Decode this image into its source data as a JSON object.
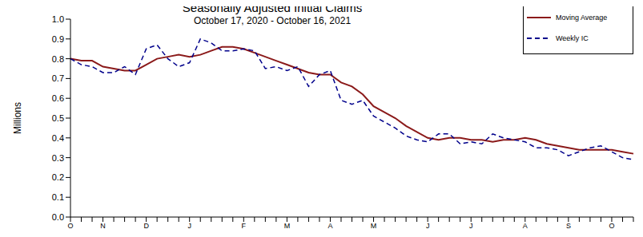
{
  "chart_data": {
    "type": "line",
    "title": "Seasonally Adjusted Initial Claims",
    "subtitle": "October 17, 2020 - October 16, 2021",
    "y_label": "Millions",
    "categories": [
      "O",
      null,
      null,
      "N",
      null,
      null,
      null,
      "D",
      null,
      null,
      null,
      "J",
      null,
      null,
      null,
      null,
      "F",
      null,
      null,
      null,
      "M",
      null,
      null,
      null,
      "A",
      null,
      null,
      null,
      "M",
      null,
      null,
      null,
      null,
      "J",
      null,
      null,
      null,
      "J",
      null,
      null,
      null,
      null,
      "A",
      null,
      null,
      null,
      "S",
      null,
      null,
      null,
      "O",
      null,
      null
    ],
    "series": [
      {
        "name": "Moving Average",
        "color": "#8b1a1a",
        "line_style": "solid",
        "values": [
          0.8,
          0.79,
          0.79,
          0.76,
          0.75,
          0.74,
          0.74,
          0.77,
          0.8,
          0.81,
          0.82,
          0.81,
          0.82,
          0.84,
          0.86,
          0.86,
          0.85,
          0.83,
          0.81,
          0.79,
          0.77,
          0.75,
          0.73,
          0.72,
          0.72,
          0.68,
          0.66,
          0.62,
          0.56,
          0.53,
          0.5,
          0.46,
          0.43,
          0.4,
          0.39,
          0.4,
          0.4,
          0.39,
          0.39,
          0.38,
          0.39,
          0.39,
          0.4,
          0.39,
          0.37,
          0.36,
          0.35,
          0.34,
          0.34,
          0.34,
          0.34,
          0.33,
          0.32
        ]
      },
      {
        "name": "Weekly IC",
        "color": "#00008b",
        "line_style": "dashed",
        "values": [
          0.8,
          0.77,
          0.76,
          0.73,
          0.73,
          0.76,
          0.72,
          0.85,
          0.87,
          0.8,
          0.76,
          0.78,
          0.9,
          0.88,
          0.84,
          0.84,
          0.85,
          0.84,
          0.75,
          0.76,
          0.74,
          0.76,
          0.66,
          0.72,
          0.74,
          0.59,
          0.57,
          0.59,
          0.51,
          0.48,
          0.45,
          0.41,
          0.39,
          0.38,
          0.42,
          0.42,
          0.37,
          0.38,
          0.37,
          0.42,
          0.4,
          0.39,
          0.38,
          0.35,
          0.35,
          0.34,
          0.31,
          0.33,
          0.35,
          0.36,
          0.33,
          0.3,
          0.29
        ]
      }
    ],
    "ylim": [
      0,
      1
    ],
    "yticks": [
      {
        "value": 0,
        "label": "0.0"
      },
      0.1,
      0.2,
      0.3,
      0.4,
      0.5,
      0.6,
      0.7,
      0.8,
      0.9,
      {
        "value": 1,
        "label": "1.0"
      }
    ],
    "grid": false,
    "legend": "upper right"
  }
}
